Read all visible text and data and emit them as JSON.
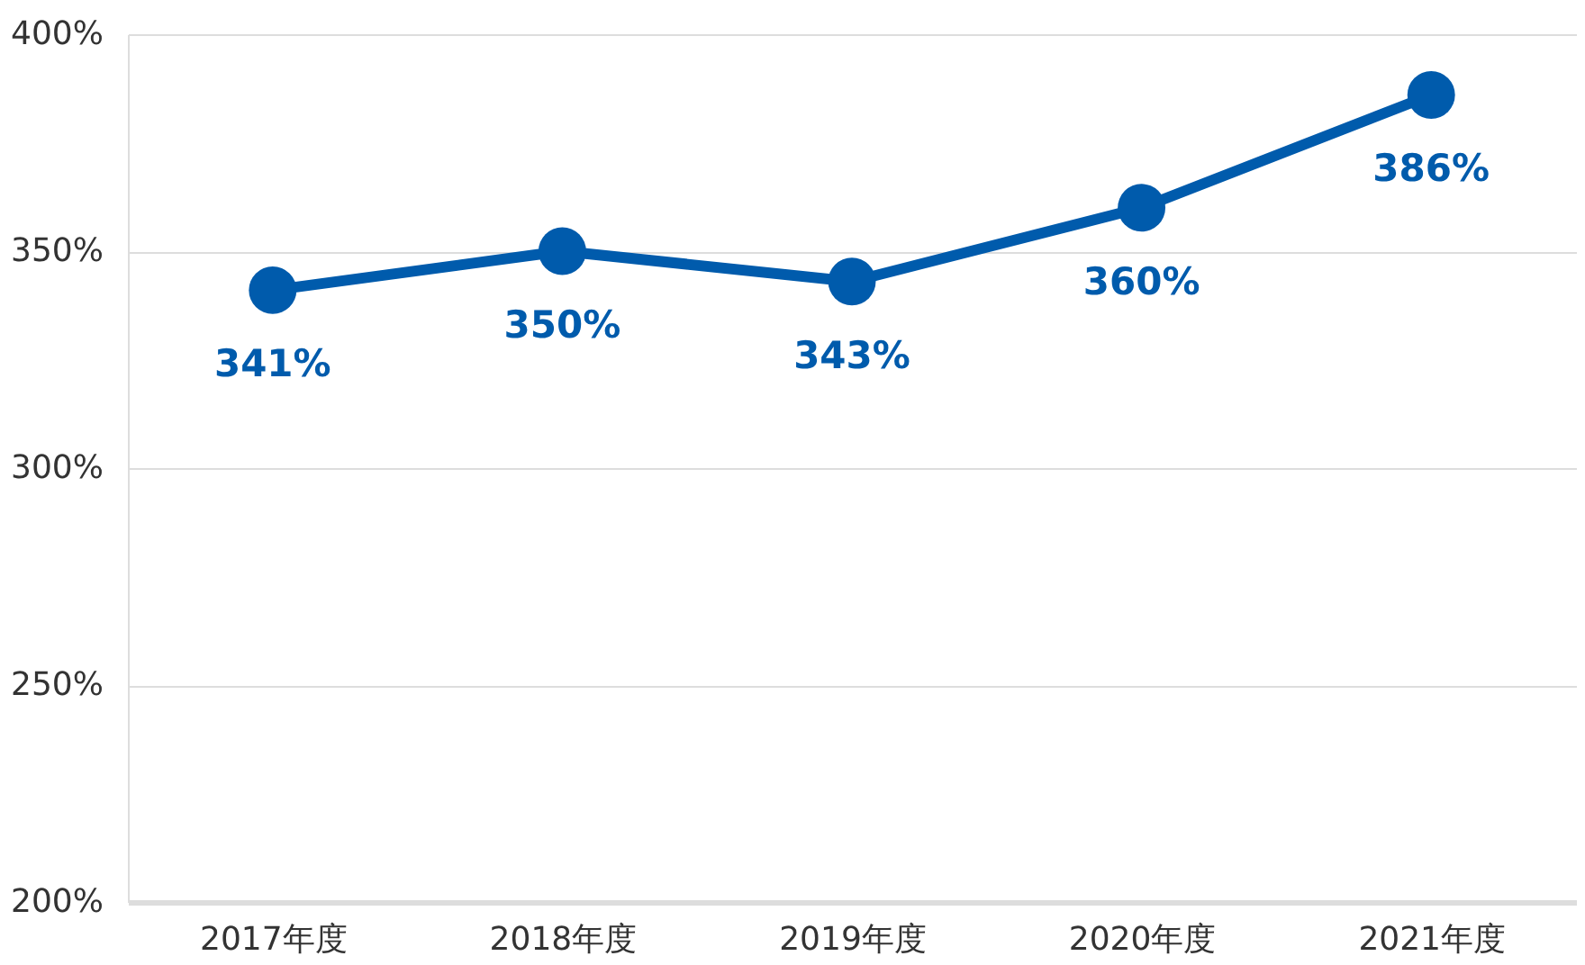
{
  "chart_data": {
    "type": "line",
    "categories": [
      "2017年度",
      "2018年度",
      "2019年度",
      "2020年度",
      "2021年度"
    ],
    "series": [
      {
        "color": "#005bac",
        "values": [
          341,
          350,
          343,
          360,
          386
        ],
        "value_labels": [
          "341%",
          "350%",
          "343%",
          "360%",
          "386%"
        ]
      }
    ],
    "ylim": [
      200,
      400
    ],
    "yticks": [
      {
        "value": 200,
        "label": "200%"
      },
      {
        "value": 250,
        "label": "250%"
      },
      {
        "value": 300,
        "label": "300%"
      },
      {
        "value": 350,
        "label": "350%"
      },
      {
        "value": 400,
        "label": "400%"
      }
    ],
    "grid": "y",
    "marker": "circle",
    "line_style": "solid"
  }
}
